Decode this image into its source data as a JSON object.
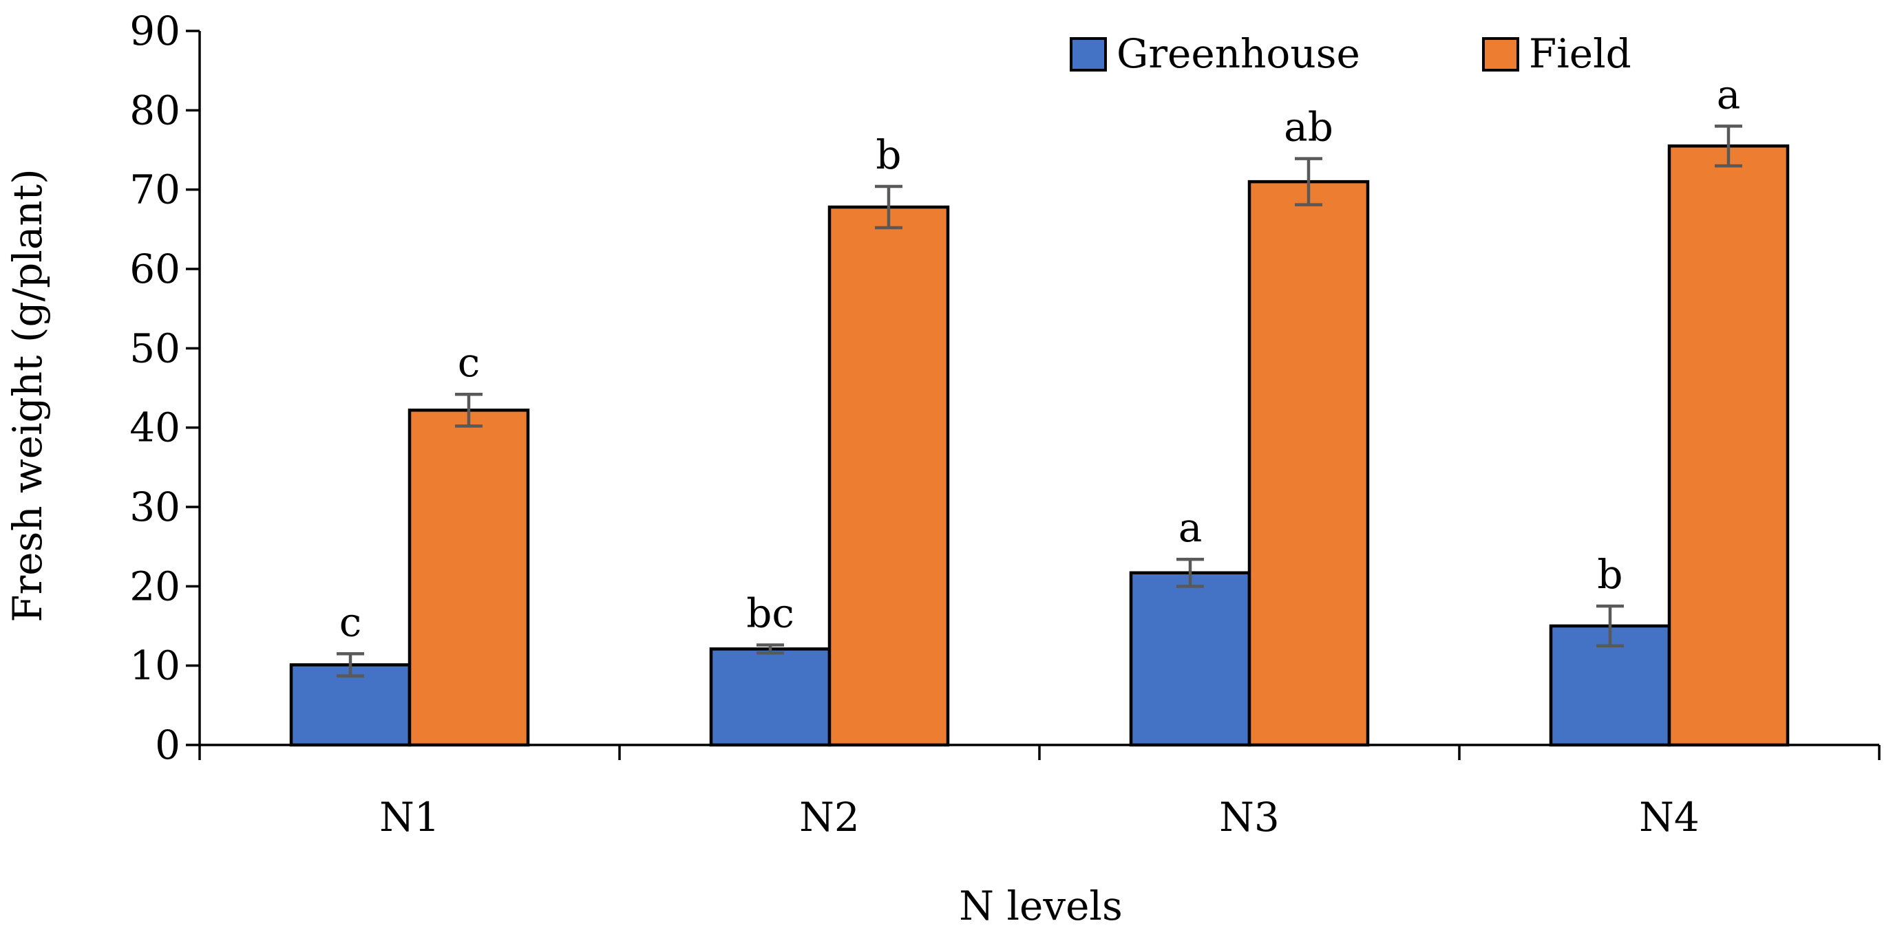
{
  "chart_data": {
    "type": "bar",
    "title": "",
    "xlabel": "N levels",
    "ylabel": "Fresh weight (g/plant)",
    "categories": [
      "N1",
      "N2",
      "N3",
      "N4"
    ],
    "ylim": [
      0,
      90
    ],
    "yticks": [
      0,
      10,
      20,
      30,
      40,
      50,
      60,
      70,
      80,
      90
    ],
    "grid": false,
    "legend_position": "top-right",
    "series": [
      {
        "name": "Greenhouse",
        "color": "#4472C4",
        "values": [
          10.1,
          12.1,
          21.7,
          15.0
        ],
        "errors": [
          1.4,
          0.5,
          1.7,
          2.5
        ],
        "significance": [
          "c",
          "bc",
          "a",
          "b"
        ]
      },
      {
        "name": "Field",
        "color": "#ED7D31",
        "values": [
          42.2,
          67.8,
          71.0,
          75.5
        ],
        "errors": [
          2.0,
          2.6,
          2.9,
          2.5
        ],
        "significance": [
          "c",
          "b",
          "ab",
          "a"
        ]
      }
    ]
  }
}
